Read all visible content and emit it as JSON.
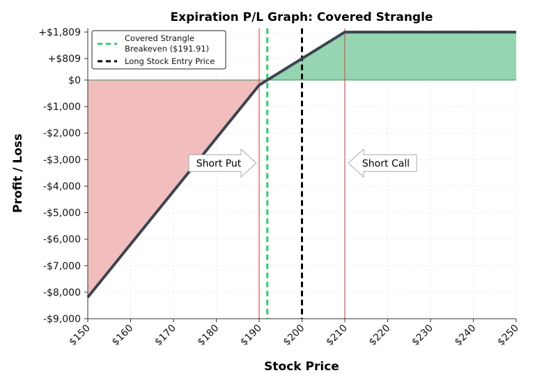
{
  "chart_data": {
    "type": "line",
    "title": "Expiration P/L Graph: Covered Strangle",
    "xlabel": "Stock Price",
    "ylabel": "Profit / Loss",
    "xlim": [
      150,
      250
    ],
    "ylim": [
      -9000,
      1950
    ],
    "grid": true,
    "x_ticks": [
      150,
      160,
      170,
      180,
      190,
      200,
      210,
      220,
      230,
      240,
      250
    ],
    "x_tick_labels": [
      "$150",
      "$160",
      "$170",
      "$180",
      "$190",
      "$200",
      "$210",
      "$220",
      "$230",
      "$240",
      "$250"
    ],
    "y_ticks": [
      1809,
      809,
      0,
      -1000,
      -2000,
      -3000,
      -4000,
      -5000,
      -6000,
      -7000,
      -8000,
      -9000
    ],
    "y_tick_labels": [
      "+$1,809",
      "+$809",
      "$0",
      "-$1,000",
      "-$2,000",
      "-$3,000",
      "-$4,000",
      "-$5,000",
      "-$6,000",
      "-$7,000",
      "-$8,000",
      "-$9,000"
    ],
    "series": [
      {
        "name": "P/L",
        "x": [
          150,
          190,
          210,
          250
        ],
        "y": [
          -8191,
          -191,
          1809,
          1809
        ],
        "color": "#3a4550"
      }
    ],
    "vlines": [
      {
        "x": 190,
        "color": "#d9534f",
        "style": "solid",
        "label": "Short Put strike"
      },
      {
        "x": 210,
        "color": "#d9534f",
        "style": "solid",
        "label": "Short Call strike"
      },
      {
        "x": 191.91,
        "color": "#2ecc71",
        "style": "dashed",
        "legend": "Covered Strangle Breakeven ($191.91)"
      },
      {
        "x": 200,
        "color": "#000000",
        "style": "dashed",
        "legend": "Long Stock Entry Price"
      }
    ],
    "legend": {
      "placement": "top-left",
      "entries": [
        "Covered Strangle Breakeven ($191.91)",
        "Long Stock Entry Price"
      ],
      "lines": [
        [
          "Covered Strangle",
          "Breakeven ($191.91)"
        ],
        [
          "Long Stock Entry Price"
        ]
      ]
    },
    "annotations": [
      {
        "text": "Short Put",
        "x": 190,
        "y": -3000,
        "direction": "right"
      },
      {
        "text": "Short Call",
        "x": 210,
        "y": -3000,
        "direction": "left"
      }
    ],
    "fill_colors": {
      "profit": "#95d5b2",
      "loss": "#f2bdbd"
    }
  }
}
